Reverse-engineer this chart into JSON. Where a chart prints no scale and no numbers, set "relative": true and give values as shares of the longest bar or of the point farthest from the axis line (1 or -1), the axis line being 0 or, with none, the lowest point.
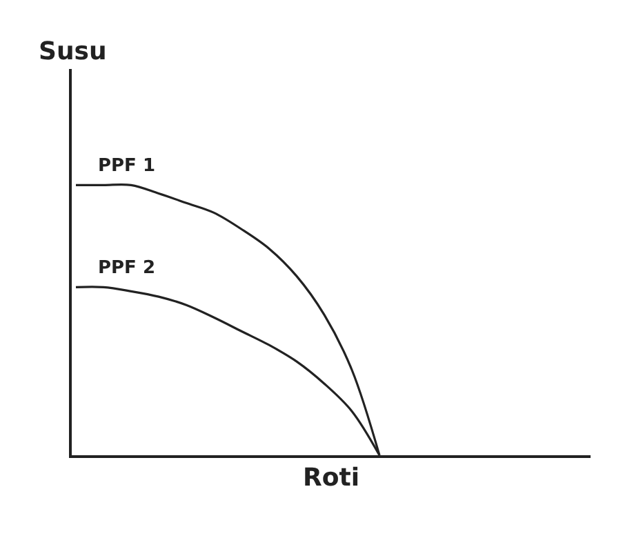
{
  "chart_data": {
    "type": "line",
    "relative": true,
    "xlabel": "Roti",
    "ylabel": "Susu",
    "marker": "none",
    "categories": [
      null,
      null,
      null,
      null,
      null,
      null,
      null,
      null,
      null,
      null,
      null,
      null
    ],
    "series": [
      {
        "name": "PPF 1",
        "color": "#222222",
        "values": [
          1.0,
          1.0,
          1.0,
          0.969,
          0.934,
          0.898,
          0.837,
          0.765,
          0.663,
          0.52,
          0.316,
          0
        ]
      },
      {
        "name": "PPF 2",
        "color": "#222222",
        "values": [
          0.622,
          0.622,
          0.607,
          0.587,
          0.556,
          0.51,
          0.459,
          0.408,
          0.347,
          0.265,
          0.163,
          0
        ]
      }
    ]
  }
}
